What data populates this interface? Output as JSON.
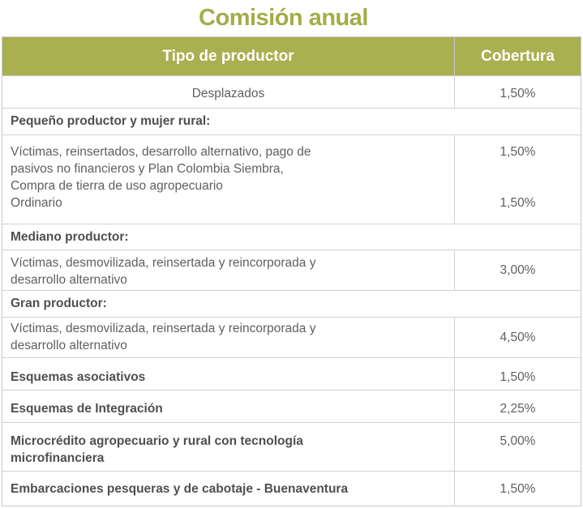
{
  "title": "Comisión anual",
  "header": {
    "col1": "Tipo de productor",
    "col2": "Cobertura"
  },
  "rows": {
    "desplazados": {
      "label": "Desplazados",
      "value": "1,50%"
    },
    "pequeno_section": "Pequeño productor y mujer rural:",
    "pequeno_victimas": {
      "line1": "Víctimas, reinsertados, desarrollo alternativo, pago de",
      "line2": "pasivos no financieros y Plan Colombia Siembra,",
      "line3": "Compra de tierra de uso agropecuario",
      "line4": "Ordinario",
      "value1": "1,50%",
      "value2": "1,50%"
    },
    "mediano_section": "Mediano productor:",
    "mediano_victimas": {
      "line1": "Víctimas, desmovilizada, reinsertada y reincorporada y",
      "line2": "desarrollo alternativo",
      "value": "3,00%"
    },
    "gran_section": "Gran productor:",
    "gran_victimas": {
      "line1": "Víctimas, desmovilizada, reinsertada y reincorporada y",
      "line2": "desarrollo alternativo",
      "value": "4,50%"
    },
    "asociativos": {
      "label": "Esquemas asociativos",
      "value": "1,50%"
    },
    "integracion": {
      "label": "Esquemas de Integración",
      "value": "2,25%"
    },
    "microcredito": {
      "line1": "Microcrédito agropecuario y rural con tecnología",
      "line2": "microfinanciera",
      "value": "5,00%"
    },
    "embarcaciones": {
      "label": "Embarcaciones pesqueras y de cabotaje - Buenaventura",
      "value": "1,50%"
    }
  }
}
